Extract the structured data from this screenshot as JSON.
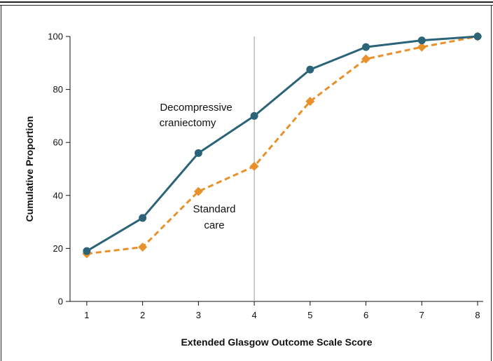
{
  "chart_data": {
    "type": "line",
    "xlabel": "Extended Glasgow Outcome Scale Score",
    "ylabel": "Cumulative Proportion",
    "x": [
      1,
      2,
      3,
      4,
      5,
      6,
      7,
      8
    ],
    "xlim": [
      0.7,
      8.1
    ],
    "ylim": [
      0,
      100
    ],
    "x_ticks": [
      1,
      2,
      3,
      4,
      5,
      6,
      7,
      8
    ],
    "y_ticks": [
      0,
      20,
      40,
      60,
      80,
      100
    ],
    "reference_line_x": 4,
    "series": [
      {
        "name": "Decompressive craniectomy",
        "marker": "circle",
        "style": "solid",
        "color": "#2b6478",
        "values": [
          19,
          31.5,
          56,
          70,
          87.5,
          96,
          98.5,
          100
        ]
      },
      {
        "name": "Standard care",
        "marker": "diamond",
        "style": "dashed",
        "color": "#e8912b",
        "values": [
          18,
          20.5,
          41.5,
          51,
          75.5,
          91.5,
          96,
          100
        ]
      }
    ],
    "annotations": [
      {
        "text": "Decompressive",
        "series": 0
      },
      {
        "text": "craniectomy",
        "series": 0
      },
      {
        "text": "Standard",
        "series": 1
      },
      {
        "text": "care",
        "series": 1
      }
    ],
    "grid": false
  }
}
